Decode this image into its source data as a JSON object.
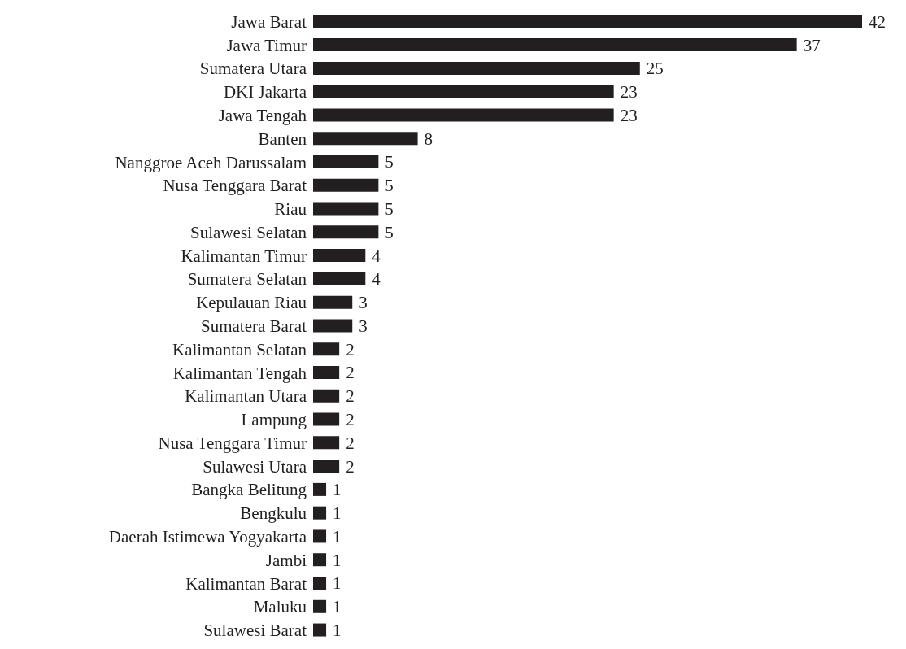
{
  "chart_data": {
    "type": "bar",
    "orientation": "horizontal",
    "categories": [
      "Jawa Barat",
      "Jawa Timur",
      "Sumatera Utara",
      "DKI Jakarta",
      "Jawa Tengah",
      "Banten",
      "Nanggroe Aceh Darussalam",
      "Nusa Tenggara Barat",
      "Riau",
      "Sulawesi Selatan",
      "Kalimantan Timur",
      "Sumatera Selatan",
      "Kepulauan Riau",
      "Sumatera Barat",
      "Kalimantan Selatan",
      "Kalimantan Tengah",
      "Kalimantan Utara",
      "Lampung",
      "Nusa Tenggara Timur",
      "Sulawesi Utara",
      "Bangka Belitung",
      "Bengkulu",
      "Daerah Istimewa Yogyakarta",
      "Jambi",
      "Kalimantan Barat",
      "Maluku",
      "Sulawesi Barat"
    ],
    "values": [
      42,
      37,
      25,
      23,
      23,
      8,
      5,
      5,
      5,
      5,
      4,
      4,
      3,
      3,
      2,
      2,
      2,
      2,
      2,
      2,
      1,
      1,
      1,
      1,
      1,
      1,
      1
    ],
    "color": "#231f20",
    "data_labels": true
  }
}
